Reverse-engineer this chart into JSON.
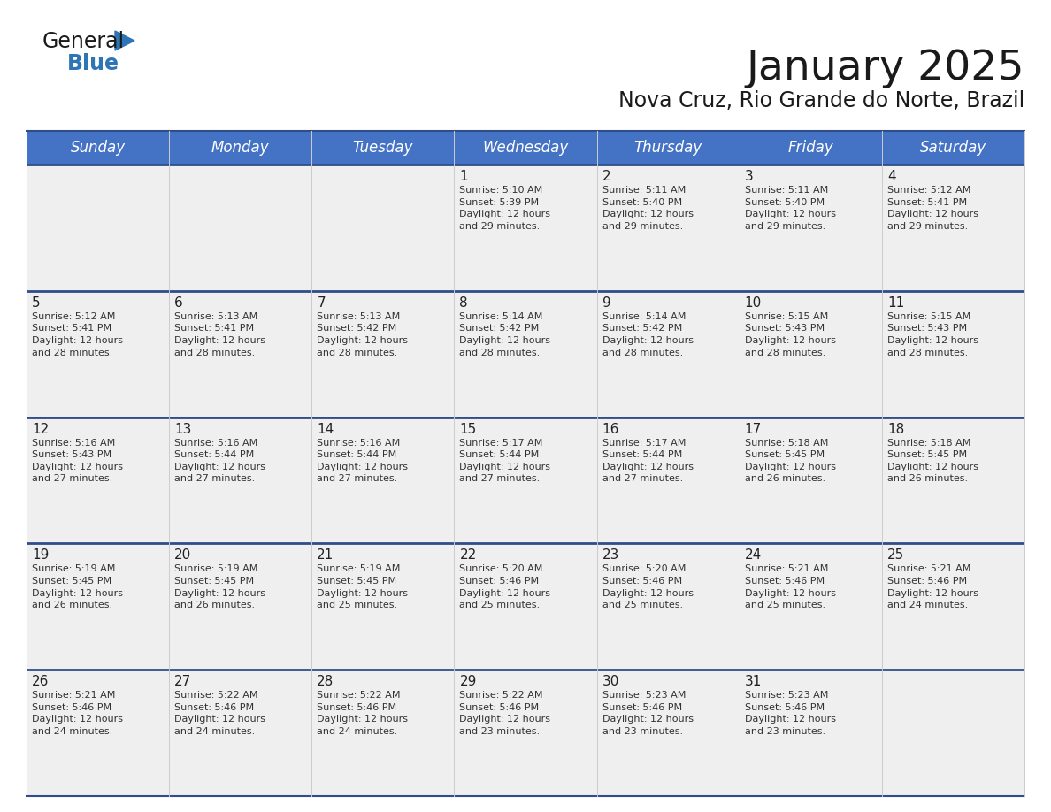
{
  "title": "January 2025",
  "subtitle": "Nova Cruz, Rio Grande do Norte, Brazil",
  "header_bg": "#4472C4",
  "header_text": "#FFFFFF",
  "cell_bg": "#EFEFEF",
  "border_color": "#2E4D8A",
  "title_color": "#1A1A1A",
  "subtitle_color": "#1A1A1A",
  "day_names": [
    "Sunday",
    "Monday",
    "Tuesday",
    "Wednesday",
    "Thursday",
    "Friday",
    "Saturday"
  ],
  "logo_general_color": "#1A1A1A",
  "logo_blue_color": "#2E75B6",
  "logo_triangle_color": "#2E75B6",
  "weeks": [
    [
      null,
      null,
      null,
      {
        "day": 1,
        "sunrise": "5:10 AM",
        "sunset": "5:39 PM",
        "daylight_hours": 12,
        "daylight_minutes": 29
      },
      {
        "day": 2,
        "sunrise": "5:11 AM",
        "sunset": "5:40 PM",
        "daylight_hours": 12,
        "daylight_minutes": 29
      },
      {
        "day": 3,
        "sunrise": "5:11 AM",
        "sunset": "5:40 PM",
        "daylight_hours": 12,
        "daylight_minutes": 29
      },
      {
        "day": 4,
        "sunrise": "5:12 AM",
        "sunset": "5:41 PM",
        "daylight_hours": 12,
        "daylight_minutes": 29
      }
    ],
    [
      {
        "day": 5,
        "sunrise": "5:12 AM",
        "sunset": "5:41 PM",
        "daylight_hours": 12,
        "daylight_minutes": 28
      },
      {
        "day": 6,
        "sunrise": "5:13 AM",
        "sunset": "5:41 PM",
        "daylight_hours": 12,
        "daylight_minutes": 28
      },
      {
        "day": 7,
        "sunrise": "5:13 AM",
        "sunset": "5:42 PM",
        "daylight_hours": 12,
        "daylight_minutes": 28
      },
      {
        "day": 8,
        "sunrise": "5:14 AM",
        "sunset": "5:42 PM",
        "daylight_hours": 12,
        "daylight_minutes": 28
      },
      {
        "day": 9,
        "sunrise": "5:14 AM",
        "sunset": "5:42 PM",
        "daylight_hours": 12,
        "daylight_minutes": 28
      },
      {
        "day": 10,
        "sunrise": "5:15 AM",
        "sunset": "5:43 PM",
        "daylight_hours": 12,
        "daylight_minutes": 28
      },
      {
        "day": 11,
        "sunrise": "5:15 AM",
        "sunset": "5:43 PM",
        "daylight_hours": 12,
        "daylight_minutes": 28
      }
    ],
    [
      {
        "day": 12,
        "sunrise": "5:16 AM",
        "sunset": "5:43 PM",
        "daylight_hours": 12,
        "daylight_minutes": 27
      },
      {
        "day": 13,
        "sunrise": "5:16 AM",
        "sunset": "5:44 PM",
        "daylight_hours": 12,
        "daylight_minutes": 27
      },
      {
        "day": 14,
        "sunrise": "5:16 AM",
        "sunset": "5:44 PM",
        "daylight_hours": 12,
        "daylight_minutes": 27
      },
      {
        "day": 15,
        "sunrise": "5:17 AM",
        "sunset": "5:44 PM",
        "daylight_hours": 12,
        "daylight_minutes": 27
      },
      {
        "day": 16,
        "sunrise": "5:17 AM",
        "sunset": "5:44 PM",
        "daylight_hours": 12,
        "daylight_minutes": 27
      },
      {
        "day": 17,
        "sunrise": "5:18 AM",
        "sunset": "5:45 PM",
        "daylight_hours": 12,
        "daylight_minutes": 26
      },
      {
        "day": 18,
        "sunrise": "5:18 AM",
        "sunset": "5:45 PM",
        "daylight_hours": 12,
        "daylight_minutes": 26
      }
    ],
    [
      {
        "day": 19,
        "sunrise": "5:19 AM",
        "sunset": "5:45 PM",
        "daylight_hours": 12,
        "daylight_minutes": 26
      },
      {
        "day": 20,
        "sunrise": "5:19 AM",
        "sunset": "5:45 PM",
        "daylight_hours": 12,
        "daylight_minutes": 26
      },
      {
        "day": 21,
        "sunrise": "5:19 AM",
        "sunset": "5:45 PM",
        "daylight_hours": 12,
        "daylight_minutes": 25
      },
      {
        "day": 22,
        "sunrise": "5:20 AM",
        "sunset": "5:46 PM",
        "daylight_hours": 12,
        "daylight_minutes": 25
      },
      {
        "day": 23,
        "sunrise": "5:20 AM",
        "sunset": "5:46 PM",
        "daylight_hours": 12,
        "daylight_minutes": 25
      },
      {
        "day": 24,
        "sunrise": "5:21 AM",
        "sunset": "5:46 PM",
        "daylight_hours": 12,
        "daylight_minutes": 25
      },
      {
        "day": 25,
        "sunrise": "5:21 AM",
        "sunset": "5:46 PM",
        "daylight_hours": 12,
        "daylight_minutes": 24
      }
    ],
    [
      {
        "day": 26,
        "sunrise": "5:21 AM",
        "sunset": "5:46 PM",
        "daylight_hours": 12,
        "daylight_minutes": 24
      },
      {
        "day": 27,
        "sunrise": "5:22 AM",
        "sunset": "5:46 PM",
        "daylight_hours": 12,
        "daylight_minutes": 24
      },
      {
        "day": 28,
        "sunrise": "5:22 AM",
        "sunset": "5:46 PM",
        "daylight_hours": 12,
        "daylight_minutes": 24
      },
      {
        "day": 29,
        "sunrise": "5:22 AM",
        "sunset": "5:46 PM",
        "daylight_hours": 12,
        "daylight_minutes": 23
      },
      {
        "day": 30,
        "sunrise": "5:23 AM",
        "sunset": "5:46 PM",
        "daylight_hours": 12,
        "daylight_minutes": 23
      },
      {
        "day": 31,
        "sunrise": "5:23 AM",
        "sunset": "5:46 PM",
        "daylight_hours": 12,
        "daylight_minutes": 23
      },
      null
    ]
  ]
}
